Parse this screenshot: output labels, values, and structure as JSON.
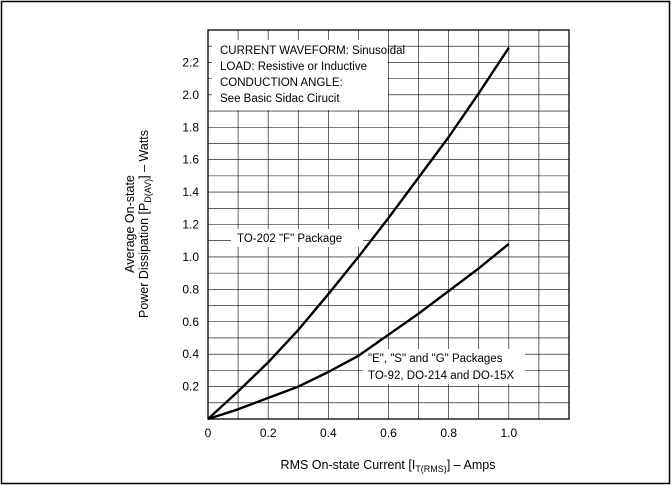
{
  "chart_data": {
    "type": "line",
    "xlabel_parts": {
      "main": "RMS On-state Current [I",
      "sub": "T(RMS)",
      "end": "] – Amps"
    },
    "ylabel_line1": "Average On-state",
    "ylabel_parts": {
      "main": "Power Dissipation [P",
      "sub": "D(AV)",
      "end": "] – Watts"
    },
    "xlim": [
      0,
      1.2
    ],
    "ylim": [
      0,
      2.4
    ],
    "x_ticks": [
      "0",
      "0.2",
      "0.4",
      "0.6",
      "0.8",
      "1.0"
    ],
    "y_ticks": [
      "0.2",
      "0.4",
      "0.6",
      "0.8",
      "1.0",
      "1.2",
      "1.4",
      "1.6",
      "1.8",
      "2.0",
      "2.2"
    ],
    "grid": true,
    "notes": [
      "CURRENT WAVEFORM: Sinusoidal",
      "LOAD: Resistive or Inductive",
      "CONDUCTION ANGLE:",
      "See Basic Sidac Cirucit"
    ],
    "series": [
      {
        "name": "TO-202 \"F\" Package",
        "x": [
          0,
          0.1,
          0.2,
          0.3,
          0.4,
          0.5,
          0.6,
          0.7,
          0.8,
          0.9,
          1.0
        ],
        "y": [
          0,
          0.17,
          0.35,
          0.55,
          0.77,
          1.0,
          1.24,
          1.49,
          1.74,
          2.01,
          2.29
        ]
      },
      {
        "name": "\"E\", \"S\" and \"G\" Packages TO-92, DO-214 and DO-15X",
        "name_lines": [
          "\"E\", \"S\" and \"G\" Packages",
          "TO-92, DO-214 and DO-15X"
        ],
        "x": [
          0,
          0.1,
          0.2,
          0.3,
          0.4,
          0.5,
          0.6,
          0.7,
          0.8,
          0.9,
          1.0
        ],
        "y": [
          0,
          0.06,
          0.13,
          0.2,
          0.29,
          0.39,
          0.52,
          0.65,
          0.79,
          0.93,
          1.08
        ]
      }
    ]
  }
}
